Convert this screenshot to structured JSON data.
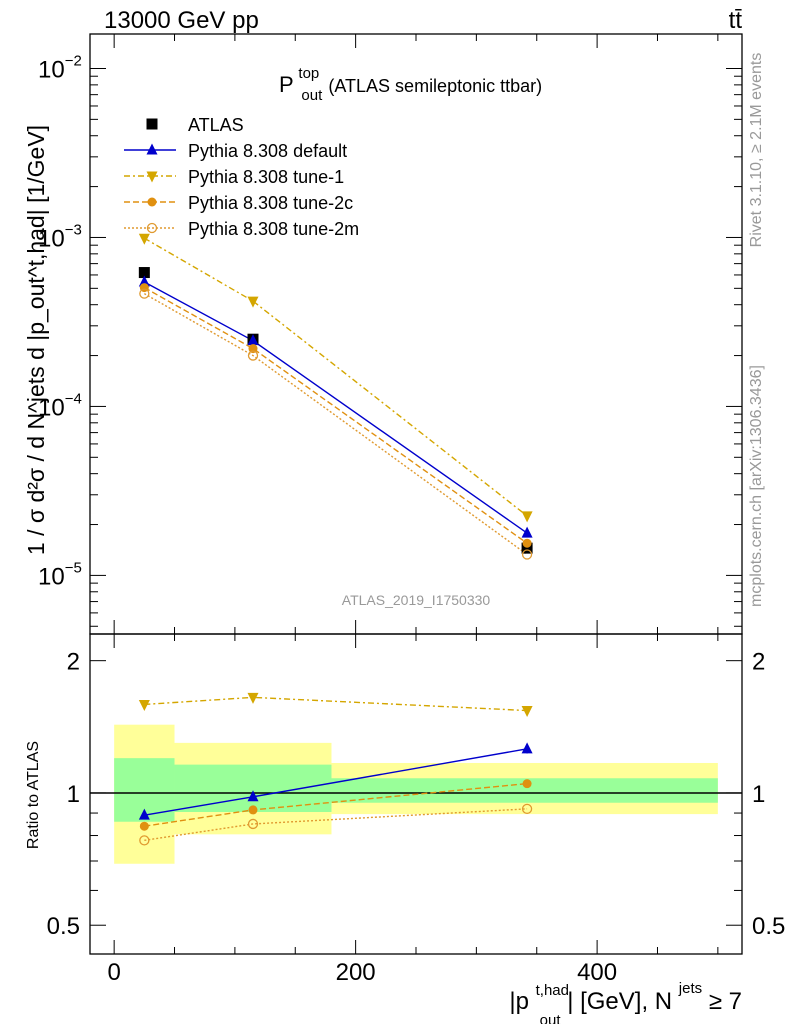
{
  "header": {
    "left": "13000 GeV pp",
    "right": "tt̄"
  },
  "side_text": {
    "rivet": "Rivet 3.1.10, ≥ 2.1M events",
    "mcplots": "mcplots.cern.ch [arXiv:1306.3436]"
  },
  "analysis_id": "ATLAS_2019_I1750330",
  "main_panel": {
    "title_main": "P",
    "title_sup": "top",
    "title_sub": "out",
    "title_rest": " (ATLAS semileptonic ttbar)",
    "ylabel": "1 / σ d²σ / d N^jets d |p_out^t,had| [1/GeV]"
  },
  "ratio_panel": {
    "ylabel": "Ratio to ATLAS"
  },
  "xaxis": {
    "label_pre": "|p",
    "label_sup1": "t,had",
    "label_sub1": "out",
    "label_mid": "| [GeV], N",
    "label_sup2": "jets",
    "label_post": " ≥ 7"
  },
  "colors": {
    "atlas": "#000000",
    "default": "#0000cc",
    "tune1": "#d4a600",
    "tune2c": "#e09010",
    "tune2m": "#e09a30",
    "band_inner": "#99ff99",
    "band_outer": "#ffff99"
  },
  "chart_data": [
    {
      "type": "scatter",
      "title": "P_out^top (ATLAS semileptonic ttbar)",
      "xlabel": "|p_out^t,had| [GeV], N^jets ≥ 7",
      "ylabel": "1 / σ d²σ / d N^jets d |p_out^t,had| [1/GeV]",
      "yscale": "log",
      "xlim": [
        -20,
        520
      ],
      "ylim": [
        4.5e-06,
        0.016
      ],
      "bins": [
        [
          0,
          50
        ],
        [
          50,
          180
        ],
        [
          180,
          500
        ]
      ],
      "x": [
        25,
        115,
        342
      ],
      "legend_position": "top-left",
      "yticks": [
        {
          "value": 1e-05,
          "label": "10",
          "exp": "−5"
        },
        {
          "value": 0.0001,
          "label": "10",
          "exp": "−4"
        },
        {
          "value": 0.001,
          "label": "10",
          "exp": "−3"
        },
        {
          "value": 0.01,
          "label": "10",
          "exp": "−2"
        }
      ],
      "series": [
        {
          "name": "ATLAS",
          "style": "square",
          "values": [
            0.00062,
            0.00025,
            1.45e-05
          ]
        },
        {
          "name": "Pythia 8.308 default",
          "style": "triangle-up",
          "line": "solid",
          "values": [
            0.000545,
            0.000245,
            1.78e-05
          ]
        },
        {
          "name": "Pythia 8.308 tune-1",
          "style": "triangle-down",
          "line": "dashdot",
          "values": [
            0.00099,
            0.00042,
            2.25e-05
          ]
        },
        {
          "name": "Pythia 8.308 tune-2c",
          "style": "circle-filled",
          "line": "dashed",
          "values": [
            0.000505,
            0.00022,
            1.55e-05
          ]
        },
        {
          "name": "Pythia 8.308 tune-2m",
          "style": "circle-open",
          "line": "dotted",
          "values": [
            0.000465,
            0.0002,
            1.33e-05
          ]
        }
      ]
    },
    {
      "type": "scatter",
      "ylabel": "Ratio to ATLAS",
      "xlim": [
        -20,
        520
      ],
      "ylim": [
        0.43,
        2.3
      ],
      "yscale": "log",
      "yticks": [
        {
          "value": 0.5,
          "label": "0.5"
        },
        {
          "value": 1,
          "label": "1"
        },
        {
          "value": 2,
          "label": "2"
        }
      ],
      "xticks": [
        {
          "value": 0,
          "label": "0"
        },
        {
          "value": 200,
          "label": "200"
        },
        {
          "value": 400,
          "label": "400"
        }
      ],
      "bands": [
        {
          "x0": 0,
          "x1": 50,
          "inner": [
            0.86,
            1.2
          ],
          "outer": [
            0.69,
            1.43
          ]
        },
        {
          "x0": 50,
          "x1": 180,
          "inner": [
            0.905,
            1.16
          ],
          "outer": [
            0.805,
            1.3
          ]
        },
        {
          "x0": 180,
          "x1": 500,
          "inner": [
            0.95,
            1.08
          ],
          "outer": [
            0.895,
            1.17
          ]
        }
      ],
      "x": [
        25,
        115,
        342
      ],
      "series": [
        {
          "name": "Pythia 8.308 default",
          "values": [
            0.89,
            0.98,
            1.26
          ],
          "errors": [
            0,
            0,
            0.03
          ]
        },
        {
          "name": "Pythia 8.308 tune-1",
          "values": [
            1.59,
            1.65,
            1.54
          ]
        },
        {
          "name": "Pythia 8.308 tune-2c",
          "values": [
            0.84,
            0.915,
            1.05
          ]
        },
        {
          "name": "Pythia 8.308 tune-2m",
          "values": [
            0.78,
            0.85,
            0.92
          ]
        }
      ]
    }
  ]
}
